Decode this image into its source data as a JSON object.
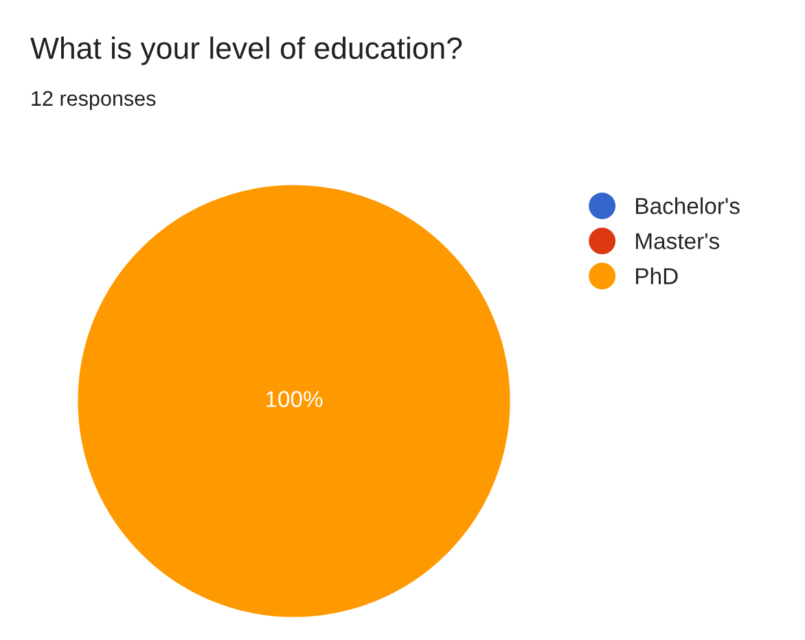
{
  "chart_data": {
    "type": "pie",
    "title": "What is your level of education?",
    "subtitle": "12 responses",
    "categories": [
      "Bachelor's",
      "Master's",
      "PhD"
    ],
    "values": [
      0,
      0,
      100
    ],
    "colors": [
      "#3366cc",
      "#dc3912",
      "#ff9900"
    ],
    "value_labels": [
      null,
      null,
      "100%"
    ],
    "legend": "right"
  }
}
